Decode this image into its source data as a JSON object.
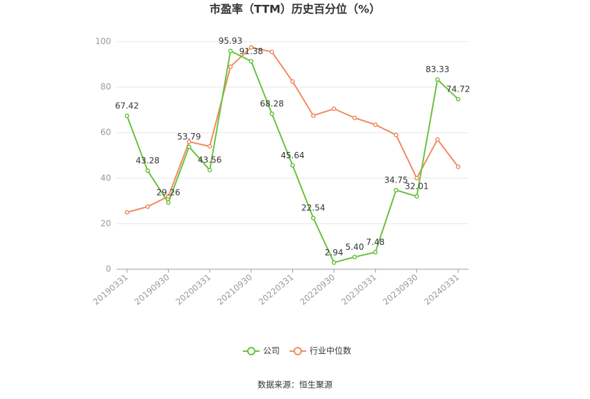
{
  "chart_data": {
    "type": "line",
    "title": "市盈率（TTM）历史百分位（%）",
    "source": "数据来源：恒生聚源",
    "categories": [
      "20190331",
      null,
      "20190930",
      null,
      "20200331",
      null,
      "20210930",
      null,
      "20220331",
      null,
      "20220930",
      null,
      "20230331",
      null,
      "20230930",
      null,
      "20240331"
    ],
    "series": [
      {
        "name": "公司",
        "color": "#67c23a",
        "values": [
          67.42,
          43.28,
          29.26,
          53.79,
          43.56,
          95.93,
          91.38,
          68.28,
          45.64,
          22.54,
          2.94,
          5.4,
          7.48,
          34.75,
          32.01,
          83.33,
          74.72
        ],
        "value_labels": [
          "67.42",
          "43.28",
          "29.26",
          "53.79",
          "43.56",
          "95.93",
          "91.38",
          "68.28",
          "45.64",
          "22.54",
          "2.94",
          "5.40",
          "7.48",
          "34.75",
          "32.01",
          "83.33",
          "74.72"
        ]
      },
      {
        "name": "行业中位数",
        "color": "#f0895f",
        "values": [
          25,
          27.5,
          32,
          56,
          54,
          89,
          97.5,
          95.5,
          82.5,
          67.5,
          70.5,
          66.5,
          63.5,
          59,
          40,
          57,
          45
        ]
      }
    ],
    "ylim": [
      0,
      100
    ],
    "yticks": [
      0,
      20,
      40,
      60,
      80,
      100
    ],
    "grid": true
  }
}
